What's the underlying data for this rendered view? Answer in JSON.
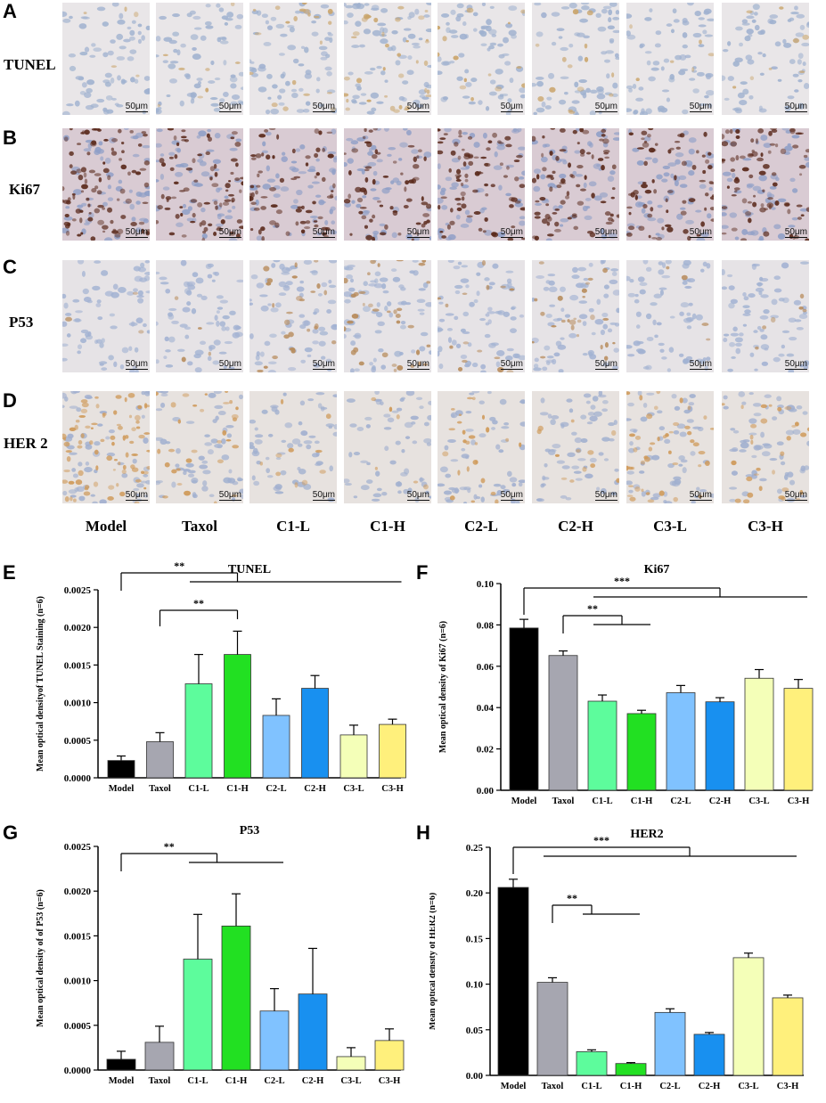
{
  "micrograph_panels": [
    {
      "letter": "A",
      "label": "TUNEL",
      "scale": "50μm",
      "stain": "tunel"
    },
    {
      "letter": "B",
      "label": "Ki67",
      "scale": "50μm",
      "stain": "ki67"
    },
    {
      "letter": "C",
      "label": "P53",
      "scale": "50μm",
      "stain": "p53"
    },
    {
      "letter": "D",
      "label": "HER 2",
      "scale": "50μm",
      "stain": "her2"
    }
  ],
  "groups": [
    "Model",
    "Taxol",
    "C1-L",
    "C1-H",
    "C2-L",
    "C2-H",
    "C3-L",
    "C3-H"
  ],
  "bar_colors": [
    "#000000",
    "#a6a6b0",
    "#5dfc9c",
    "#22e022",
    "#80c2ff",
    "#1890f0",
    "#f4ffb8",
    "#fff07c"
  ],
  "chart_data": [
    {
      "letter": "E",
      "type": "bar",
      "title": "TUNEL",
      "ylabel": "Mean optical densityof TUNEL Staining (n=6)",
      "categories": [
        "Model",
        "Taxol",
        "C1-L",
        "C1-H",
        "C2-L",
        "C2-H",
        "C3-L",
        "C3-H"
      ],
      "values": [
        0.00023,
        0.00048,
        0.00125,
        0.00164,
        0.00083,
        0.00119,
        0.00057,
        0.00071
      ],
      "errors": [
        6e-05,
        0.00012,
        0.00039,
        0.00031,
        0.00022,
        0.00017,
        0.00013,
        7e-05
      ],
      "ylim": [
        0,
        0.0025
      ],
      "yticks": [
        "0.0000",
        "0.0005",
        "0.0010",
        "0.0015",
        "0.0020",
        "0.0025"
      ],
      "significance": [
        "**",
        "**"
      ]
    },
    {
      "letter": "F",
      "type": "bar",
      "title": "Ki67",
      "ylabel": "Mean optical density of Ki67 (n=6)",
      "categories": [
        "Model",
        "Taxol",
        "C1-L",
        "C1-H",
        "C2-L",
        "C2-H",
        "C3-L",
        "C3-H"
      ],
      "values": [
        0.0785,
        0.0652,
        0.0431,
        0.0371,
        0.0472,
        0.0428,
        0.0542,
        0.0493
      ],
      "errors": [
        0.0042,
        0.0022,
        0.003,
        0.0016,
        0.0035,
        0.002,
        0.0042,
        0.0043
      ],
      "ylim": [
        0,
        0.1
      ],
      "yticks": [
        "0.00",
        "0.02",
        "0.04",
        "0.06",
        "0.08",
        "0.10"
      ],
      "significance": [
        "***",
        "**"
      ]
    },
    {
      "letter": "G",
      "type": "bar",
      "title": "P53",
      "ylabel": "Mean optical density of of P53 (n=6)",
      "categories": [
        "Model",
        "Taxol",
        "C1-L",
        "C1-H",
        "C2-L",
        "C2-H",
        "C3-L",
        "C3-H"
      ],
      "values": [
        0.00012,
        0.00031,
        0.00124,
        0.00161,
        0.00066,
        0.00085,
        0.00015,
        0.00033
      ],
      "errors": [
        9e-05,
        0.00018,
        0.0005,
        0.00036,
        0.00025,
        0.00051,
        0.0001,
        0.00013
      ],
      "ylim": [
        0,
        0.0025
      ],
      "yticks": [
        "0.0000",
        "0.0005",
        "0.0010",
        "0.0015",
        "0.0020",
        "0.0025"
      ],
      "significance": [
        "**"
      ]
    },
    {
      "letter": "H",
      "type": "bar",
      "title": "HER2",
      "ylabel": "Mean optical density of HER2 (n=6)",
      "categories": [
        "Model",
        "Taxol",
        "C1-L",
        "C1-H",
        "C2-L",
        "C2-H",
        "C3-L",
        "C3-H"
      ],
      "values": [
        0.206,
        0.102,
        0.026,
        0.013,
        0.069,
        0.045,
        0.129,
        0.085
      ],
      "errors": [
        0.009,
        0.005,
        0.002,
        0.001,
        0.004,
        0.002,
        0.005,
        0.003
      ],
      "ylim": [
        0,
        0.25
      ],
      "yticks": [
        "0.00",
        "0.05",
        "0.10",
        "0.15",
        "0.20",
        "0.25"
      ],
      "significance": [
        "***",
        "**"
      ]
    }
  ]
}
